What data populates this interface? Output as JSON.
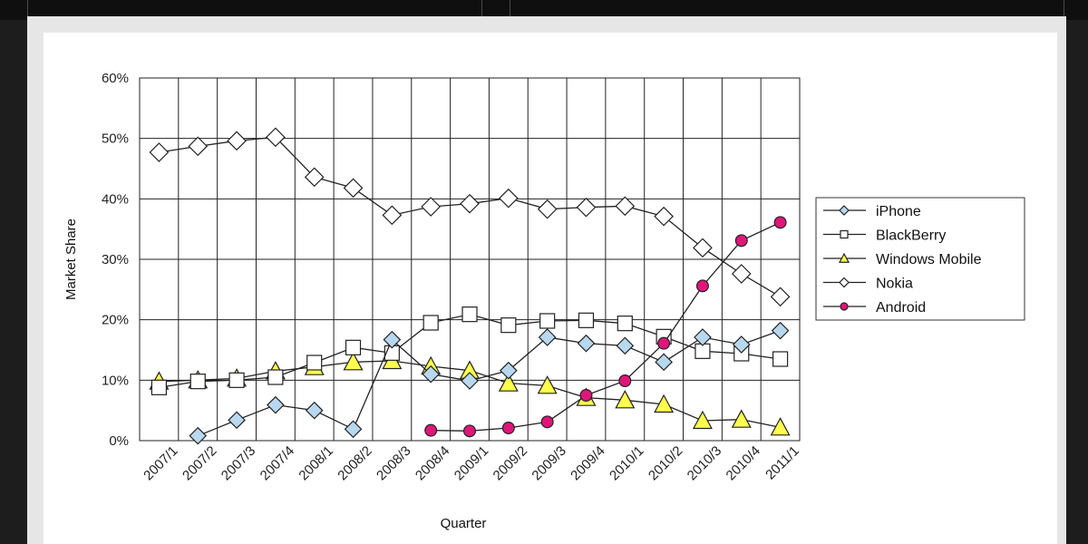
{
  "chart_data": {
    "type": "line",
    "xlabel": "Quarter",
    "ylabel": "Market Share",
    "ylim": [
      0,
      60
    ],
    "yticks": [
      "0%",
      "10%",
      "20%",
      "30%",
      "40%",
      "50%",
      "60%"
    ],
    "grid": true,
    "legend_position": "right",
    "categories": [
      "2007/1",
      "2007/2",
      "2007/3",
      "2007/4",
      "2008/1",
      "2008/2",
      "2008/3",
      "2008/4",
      "2009/1",
      "2009/2",
      "2009/3",
      "2009/4",
      "2010/1",
      "2010/2",
      "2010/3",
      "2010/4",
      "2011/1"
    ],
    "series": [
      {
        "name": "iPhone",
        "marker": "diamond",
        "color": "#b8d8f0",
        "values": [
          null,
          0.8,
          3.4,
          5.9,
          5.0,
          1.9,
          16.7,
          11.0,
          9.9,
          11.6,
          17.1,
          16.1,
          15.7,
          13.0,
          17.1,
          15.9,
          18.2
        ]
      },
      {
        "name": "BlackBerry",
        "marker": "square",
        "color": "#ffffff",
        "values": [
          8.8,
          9.8,
          10.0,
          10.5,
          12.9,
          15.4,
          14.5,
          19.5,
          20.9,
          19.1,
          19.8,
          19.9,
          19.4,
          17.2,
          14.8,
          14.4,
          13.5
        ]
      },
      {
        "name": "Windows Mobile",
        "marker": "triangle",
        "color": "#ffff4d",
        "values": [
          9.8,
          10.0,
          10.3,
          11.5,
          12.2,
          13.0,
          13.2,
          12.3,
          11.6,
          9.5,
          9.1,
          7.1,
          6.7,
          6.0,
          3.3,
          3.5,
          2.2
        ]
      },
      {
        "name": "Nokia",
        "marker": "diamond",
        "color": "#ffffff",
        "values": [
          47.7,
          48.7,
          49.6,
          50.2,
          43.6,
          41.8,
          37.3,
          38.7,
          39.2,
          40.1,
          38.3,
          38.6,
          38.8,
          37.1,
          31.9,
          27.6,
          23.8
        ]
      },
      {
        "name": "Android",
        "marker": "circle",
        "color": "#e0167a",
        "values": [
          null,
          null,
          null,
          null,
          null,
          null,
          null,
          1.7,
          1.6,
          2.1,
          3.1,
          7.5,
          9.9,
          16.1,
          25.6,
          33.1,
          36.1
        ]
      }
    ]
  }
}
